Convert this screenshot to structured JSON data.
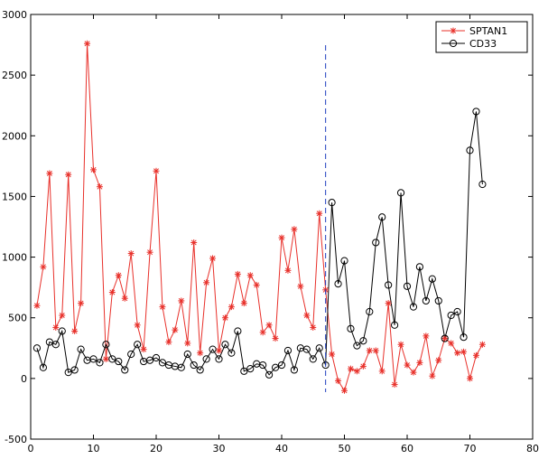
{
  "chart_data": {
    "type": "line",
    "title": "",
    "xlabel": "",
    "ylabel": "",
    "xlim": [
      0,
      80
    ],
    "ylim": [
      -500,
      3000
    ],
    "xticks": [
      0,
      10,
      20,
      30,
      40,
      50,
      60,
      70,
      80
    ],
    "yticks": [
      -500,
      0,
      500,
      1000,
      1500,
      2000,
      2500,
      3000
    ],
    "grid": false,
    "legend_position": "top-right",
    "vline_x": 47,
    "vline_color": "#1f3fbf",
    "series": [
      {
        "name": "SPTAN1",
        "color": "#e8302a",
        "marker": "star",
        "x": [
          1,
          2,
          3,
          4,
          5,
          6,
          7,
          8,
          9,
          10,
          11,
          12,
          13,
          14,
          15,
          16,
          17,
          18,
          19,
          20,
          21,
          22,
          23,
          24,
          25,
          26,
          27,
          28,
          29,
          30,
          31,
          32,
          33,
          34,
          35,
          36,
          37,
          38,
          39,
          40,
          41,
          42,
          43,
          44,
          45,
          46,
          47,
          48,
          49,
          50,
          51,
          52,
          53,
          54,
          55,
          56,
          57,
          58,
          59,
          60,
          61,
          62,
          63,
          64,
          65,
          66,
          67,
          68,
          69,
          70,
          71,
          72
        ],
        "values": [
          600,
          920,
          1690,
          420,
          520,
          1680,
          390,
          620,
          2760,
          1720,
          1580,
          160,
          710,
          850,
          660,
          1030,
          440,
          240,
          1040,
          1710,
          590,
          300,
          400,
          640,
          290,
          1120,
          210,
          790,
          990,
          230,
          500,
          590,
          860,
          620,
          850,
          770,
          380,
          440,
          330,
          1160,
          890,
          1230,
          760,
          520,
          420,
          1360,
          730,
          200,
          -20,
          -100,
          80,
          60,
          100,
          230,
          230,
          60,
          620,
          -50,
          280,
          110,
          50,
          130,
          350,
          20,
          150,
          330,
          290,
          210,
          220,
          0,
          190,
          280
        ]
      },
      {
        "name": "CD33",
        "color": "#000000",
        "marker": "circle",
        "x": [
          1,
          2,
          3,
          4,
          5,
          6,
          7,
          8,
          9,
          10,
          11,
          12,
          13,
          14,
          15,
          16,
          17,
          18,
          19,
          20,
          21,
          22,
          23,
          24,
          25,
          26,
          27,
          28,
          29,
          30,
          31,
          32,
          33,
          34,
          35,
          36,
          37,
          38,
          39,
          40,
          41,
          42,
          43,
          44,
          45,
          46,
          47,
          48,
          49,
          50,
          51,
          52,
          53,
          54,
          55,
          56,
          57,
          58,
          59,
          60,
          61,
          62,
          63,
          64,
          65,
          66,
          67,
          68,
          69,
          70,
          71,
          72
        ],
        "values": [
          250,
          90,
          300,
          280,
          390,
          50,
          70,
          240,
          150,
          160,
          130,
          280,
          160,
          140,
          70,
          200,
          280,
          140,
          150,
          170,
          130,
          110,
          100,
          90,
          200,
          110,
          70,
          160,
          240,
          160,
          280,
          210,
          390,
          60,
          80,
          120,
          110,
          30,
          90,
          110,
          230,
          70,
          250,
          240,
          160,
          250,
          110,
          1450,
          780,
          970,
          410,
          270,
          310,
          550,
          1120,
          1330,
          770,
          440,
          1530,
          760,
          590,
          920,
          640,
          820,
          640,
          330,
          520,
          550,
          340,
          1880,
          2200,
          1600
        ]
      }
    ]
  }
}
